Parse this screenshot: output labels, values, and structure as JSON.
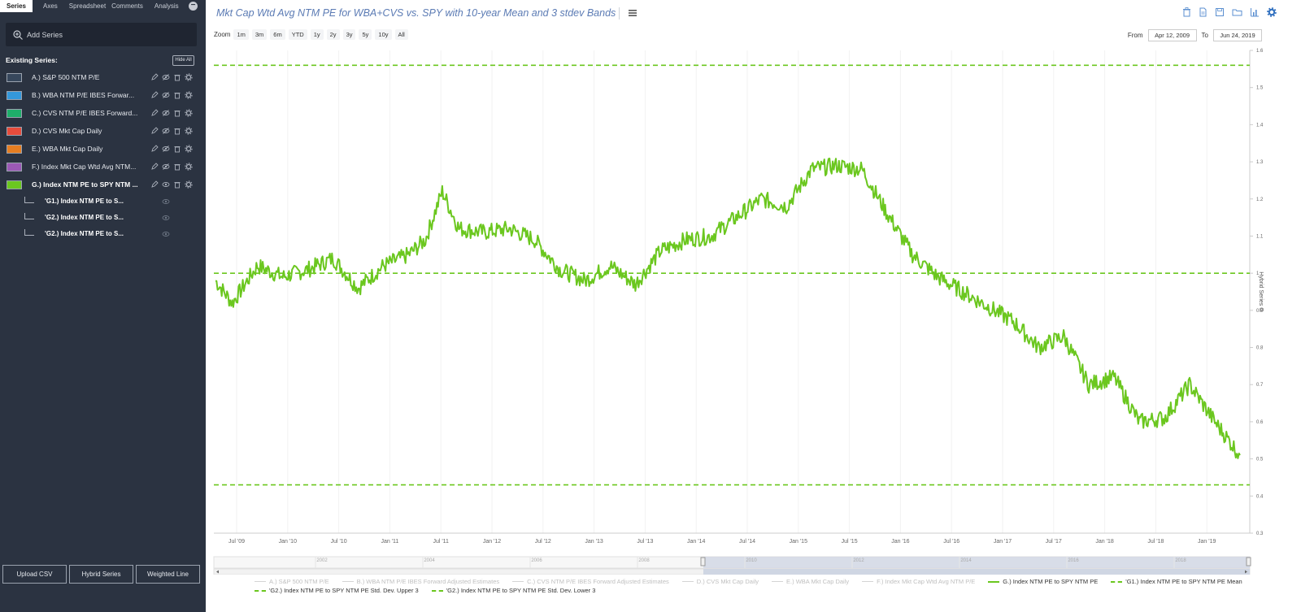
{
  "sidebar": {
    "tabs": [
      "Series",
      "Axes",
      "Spreadsheet",
      "Comments",
      "Analysis"
    ],
    "add_series_placeholder": "Add Series",
    "existing_title": "Existing Series:",
    "hide_all": "Hide All",
    "series": [
      {
        "label": "A.) S&P 500 NTM P/E",
        "color": "#37475c",
        "bold": false
      },
      {
        "label": "B.) WBA NTM P/E IBES Forwar...",
        "color": "#3498db",
        "bold": false
      },
      {
        "label": "C.) CVS NTM P/E IBES Forward...",
        "color": "#1fae6a",
        "bold": false
      },
      {
        "label": "D.) CVS Mkt Cap Daily",
        "color": "#e74c3c",
        "bold": false
      },
      {
        "label": "E.) WBA Mkt Cap Daily",
        "color": "#e67e22",
        "bold": false
      },
      {
        "label": "F.) Index Mkt Cap Wtd Avg NTM...",
        "color": "#9b59b6",
        "bold": false
      },
      {
        "label": "G.) Index NTM PE to SPY NTM ...",
        "color": "#6bc71f",
        "bold": true
      }
    ],
    "subseries": [
      "'G1.) Index NTM PE to S...",
      "'G2.) Index NTM PE to S...",
      "'G2.) Index NTM PE to S..."
    ],
    "buttons": [
      "Upload CSV",
      "Hybrid Series",
      "Weighted Line"
    ]
  },
  "header": {
    "title": "Mkt Cap Wtd Avg NTM PE for WBA+CVS vs. SPY with 10-year Mean and 3 stdev Bands"
  },
  "zoom": {
    "label": "Zoom",
    "options": [
      "1m",
      "3m",
      "6m",
      "YTD",
      "1y",
      "2y",
      "3y",
      "5y",
      "10y",
      "All"
    ]
  },
  "range": {
    "from_label": "From",
    "from_value": "Apr 12, 2009",
    "to_label": "To",
    "to_value": "Jun 24, 2019"
  },
  "chart_data": {
    "type": "line",
    "ylabel": "Hybrid Series G",
    "ylim": [
      0.3,
      1.6
    ],
    "yticks": [
      "0.3",
      "0.4",
      "0.5",
      "0.6",
      "0.7",
      "0.8",
      "0.9",
      "1",
      "1.1",
      "1.2",
      "1.3",
      "1.4",
      "1.5",
      "1.6"
    ],
    "xticks": [
      "Jul '09",
      "Jan '10",
      "Jul '10",
      "Jan '11",
      "Jul '11",
      "Jan '12",
      "Jul '12",
      "Jan '13",
      "Jul '13",
      "Jan '14",
      "Jul '14",
      "Jan '15",
      "Jul '15",
      "Jan '16",
      "Jul '16",
      "Jan '17",
      "Jul '17",
      "Jan '18",
      "Jul '18",
      "Jan '19"
    ],
    "navigator_ticks": [
      "2002",
      "2004",
      "2006",
      "2008",
      "2010",
      "2012",
      "2014",
      "2016",
      "2018"
    ],
    "reference_lines": [
      {
        "name": "'G1.) Index NTM PE to SPY NTM PE Mean",
        "value": 1.0
      },
      {
        "name": "'G2.) Index NTM PE to SPY NTM PE Std. Dev. Upper 3",
        "value": 1.56
      },
      {
        "name": "'G2.) Index NTM PE to SPY NTM PE Std. Dev. Lower 3",
        "value": 0.43
      }
    ],
    "series": [
      {
        "name": "G.) Index NTM PE to SPY NTM PE",
        "color": "#6bc71f",
        "x": [
          "2009-04",
          "2009-06",
          "2009-09",
          "2009-12",
          "2010-03",
          "2010-06",
          "2010-09",
          "2010-12",
          "2011-03",
          "2011-05",
          "2011-07",
          "2011-09",
          "2011-12",
          "2012-03",
          "2012-06",
          "2012-09",
          "2012-12",
          "2013-03",
          "2013-06",
          "2013-09",
          "2013-12",
          "2014-03",
          "2014-06",
          "2014-09",
          "2014-12",
          "2015-03",
          "2015-06",
          "2015-09",
          "2015-12",
          "2016-03",
          "2016-06",
          "2016-09",
          "2016-12",
          "2017-03",
          "2017-06",
          "2017-09",
          "2017-12",
          "2018-03",
          "2018-06",
          "2018-09",
          "2018-12",
          "2019-03",
          "2019-06"
        ],
        "values": [
          0.98,
          0.92,
          1.02,
          0.99,
          1.01,
          1.04,
          0.96,
          1.02,
          1.05,
          1.09,
          1.22,
          1.12,
          1.11,
          1.12,
          1.09,
          1.01,
          0.98,
          1.02,
          0.97,
          1.06,
          1.09,
          1.1,
          1.15,
          1.2,
          1.18,
          1.28,
          1.29,
          1.28,
          1.16,
          1.05,
          0.99,
          0.95,
          0.91,
          0.87,
          0.8,
          0.83,
          0.7,
          0.72,
          0.6,
          0.61,
          0.7,
          0.6,
          0.51
        ]
      }
    ]
  },
  "legend": {
    "row1": [
      {
        "label": "A.) S&P 500 NTM P/E",
        "on": false,
        "dash": false
      },
      {
        "label": "B.) WBA NTM P/E IBES Forward Adjusted Estimates",
        "on": false,
        "dash": false
      },
      {
        "label": "C.) CVS NTM P/E IBES Forward Adjusted Estimates",
        "on": false,
        "dash": false
      },
      {
        "label": "D.) CVS Mkt Cap Daily",
        "on": false,
        "dash": false
      },
      {
        "label": "E.) WBA Mkt Cap Daily",
        "on": false,
        "dash": false
      },
      {
        "label": "F.) Index Mkt Cap Wtd Avg NTM P/E",
        "on": false,
        "dash": false
      },
      {
        "label": "G.) Index NTM PE to SPY NTM PE",
        "on": true,
        "dash": false
      },
      {
        "label": "'G1.) Index NTM PE to SPY NTM PE Mean",
        "on": true,
        "dash": true
      }
    ],
    "row2": [
      {
        "label": "'G2.) Index NTM PE to SPY NTM PE Std. Dev. Upper 3",
        "on": true,
        "dash": true
      },
      {
        "label": "'G2.) Index NTM PE to SPY NTM PE Std. Dev. Lower 3",
        "on": true,
        "dash": true
      }
    ]
  }
}
